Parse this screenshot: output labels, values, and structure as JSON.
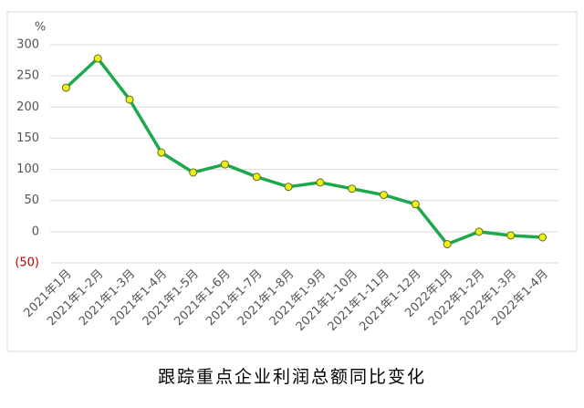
{
  "chart_data": {
    "type": "line",
    "title": "跟踪重点企业利润总额同比变化",
    "y_unit": "%",
    "categories": [
      "2021年1月",
      "2021年1-2月",
      "2021年1-3月",
      "2021年1-4月",
      "2021年1-5月",
      "2021年1-6月",
      "2021年1-7月",
      "2021年1-8月",
      "2021年1-9月",
      "2021年1-10月",
      "2021年1-11月",
      "2021年1-12月",
      "2022年1月",
      "2022年1-2月",
      "2022年1-3月",
      "2022年1-4月"
    ],
    "values": [
      231,
      278,
      212,
      127,
      95,
      108,
      88,
      72,
      79,
      69,
      59,
      44,
      -20,
      0,
      -6,
      -9
    ],
    "color": "#1ea84e",
    "marker_color": "#e8f01a",
    "ylim": [
      -50,
      300
    ],
    "yticks": [
      {
        "value": -50,
        "label": "(50)"
      },
      0,
      50,
      100,
      150,
      200,
      250,
      300
    ],
    "negative_tick_color": "#c00000",
    "grid": true
  }
}
